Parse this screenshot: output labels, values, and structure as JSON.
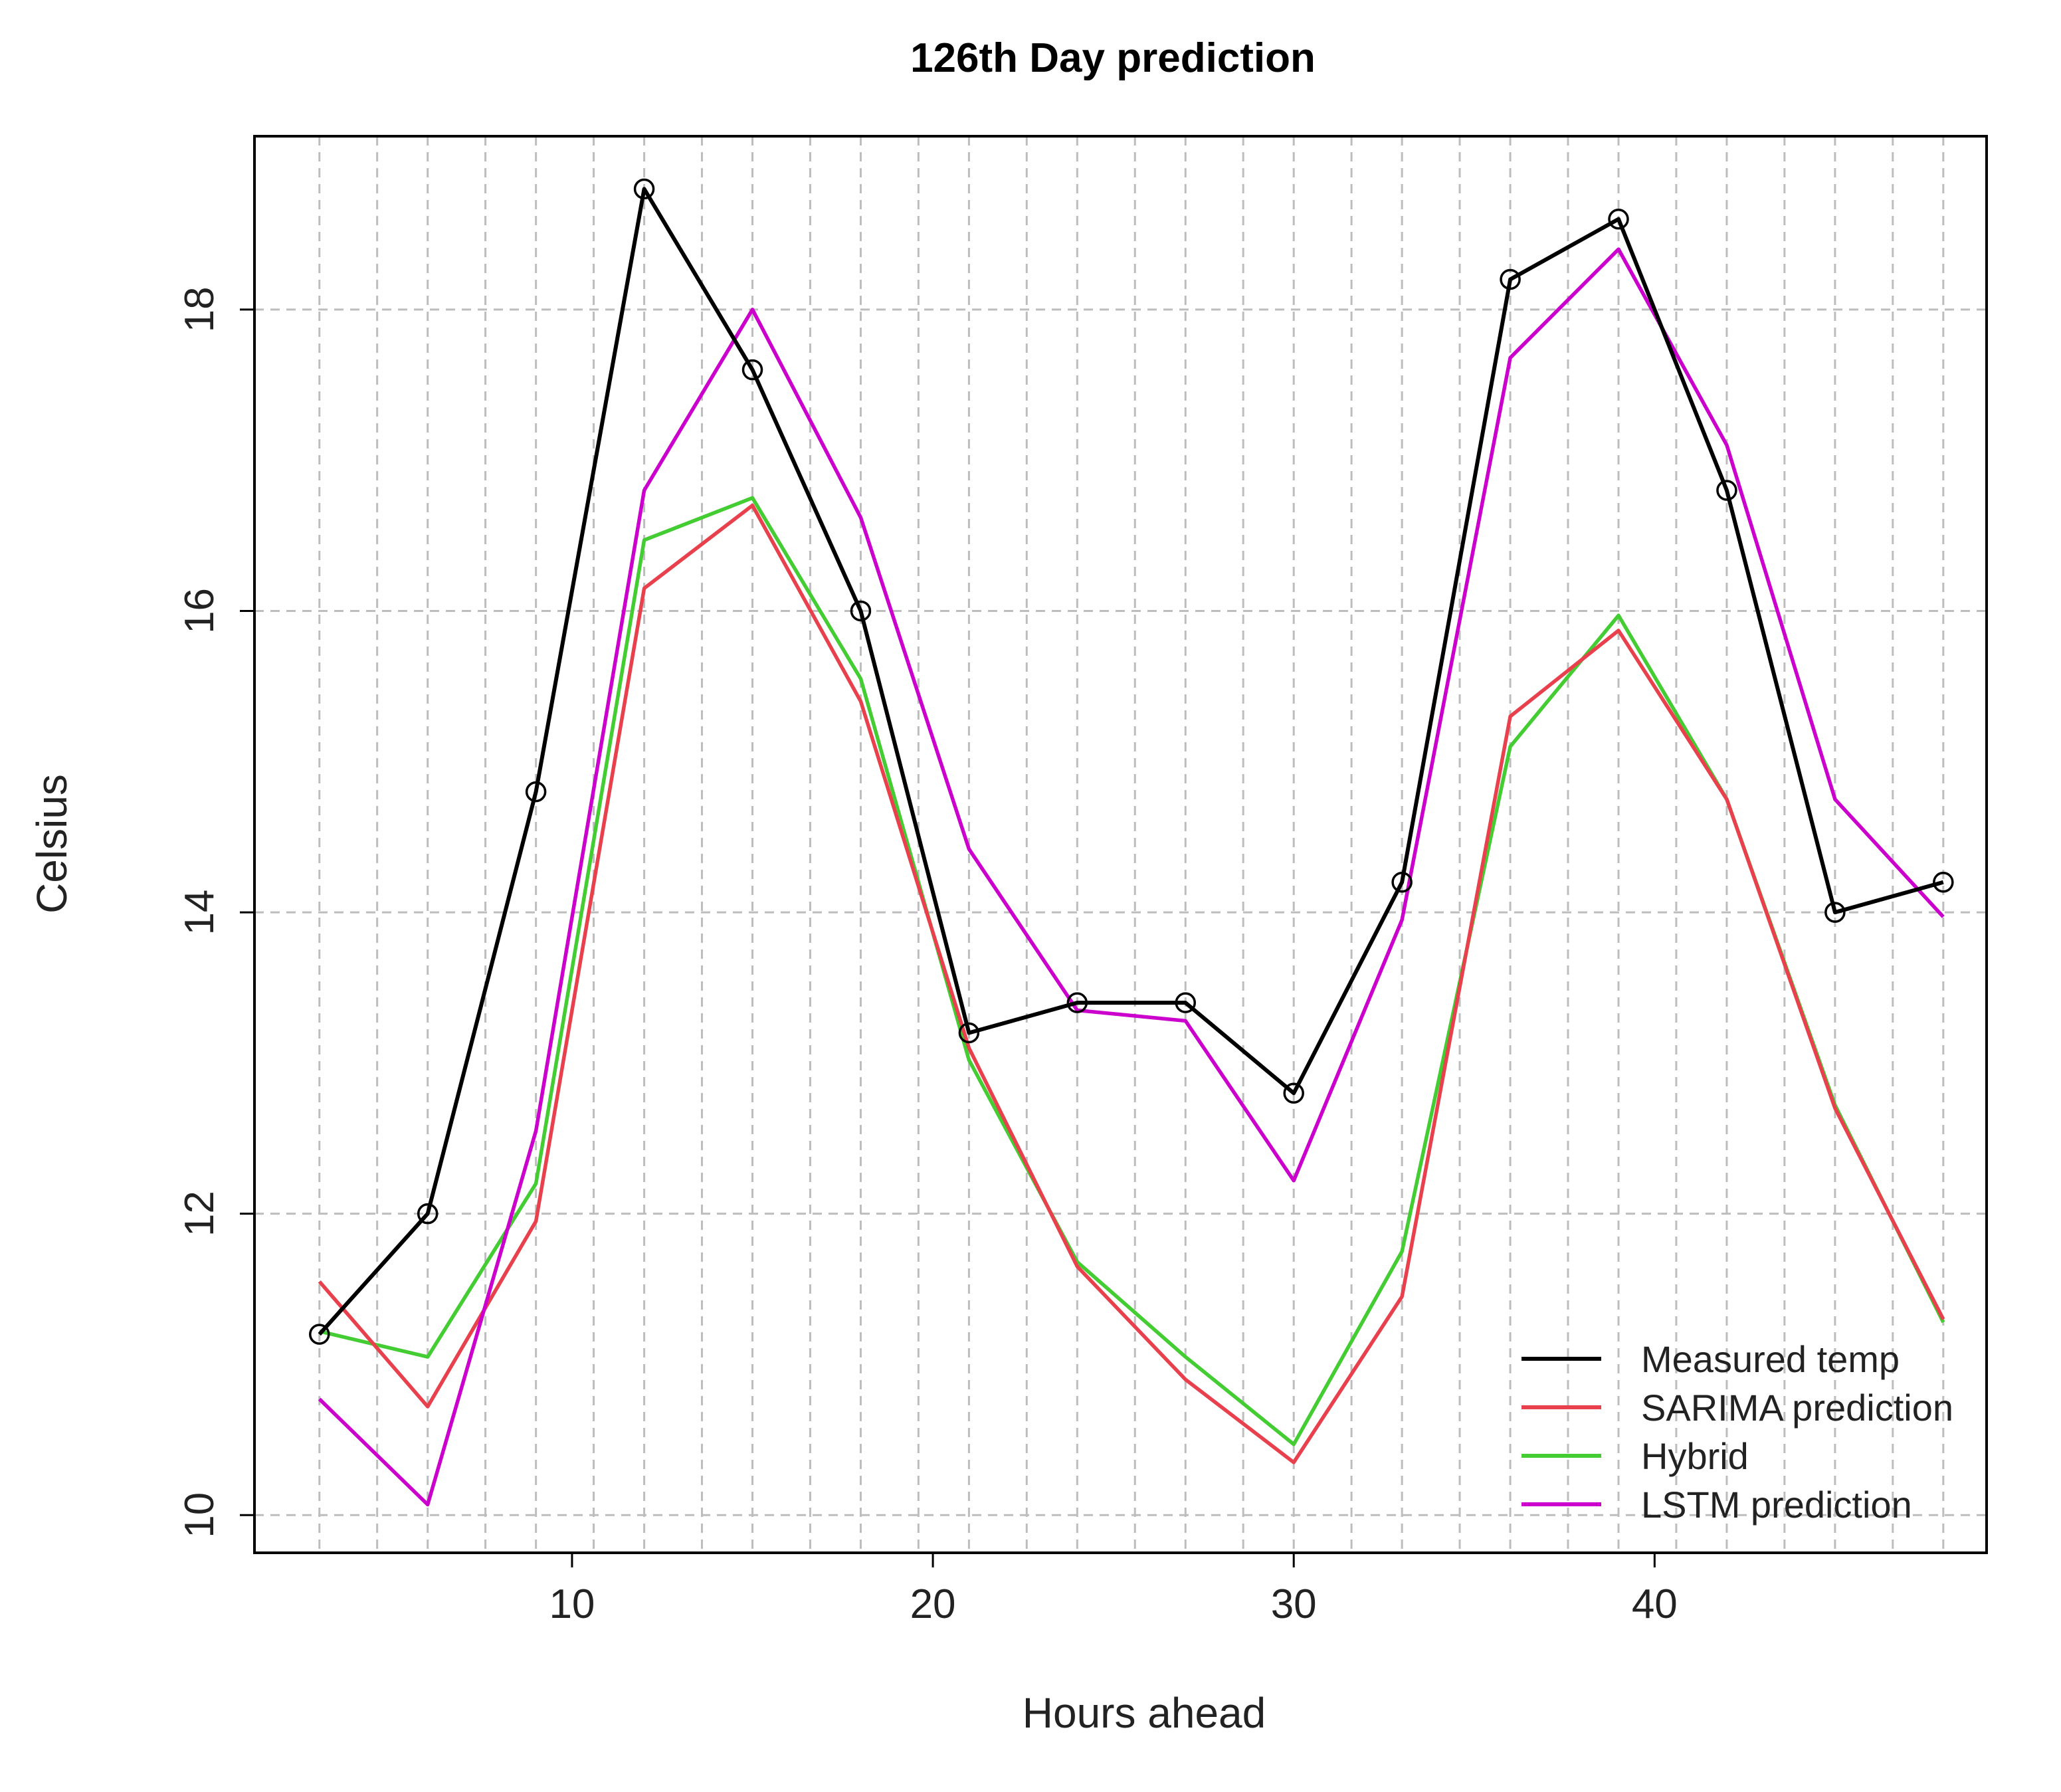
{
  "chart_data": {
    "type": "line",
    "title": "126th Day prediction",
    "xlabel": "Hours ahead",
    "ylabel": "Celsius",
    "xlim": [
      1.2,
      49.2
    ],
    "ylim": [
      9.75,
      19.15
    ],
    "x_ticks": [
      10,
      20,
      30,
      40
    ],
    "y_ticks": [
      10,
      12,
      14,
      16,
      18
    ],
    "x_gridlines": [
      3,
      4.6,
      6,
      7.6,
      9,
      10.6,
      12,
      13.6,
      15,
      16.6,
      18,
      19.6,
      21,
      22.6,
      24,
      25.6,
      27,
      28.6,
      30,
      31.6,
      33,
      34.6,
      36,
      37.6,
      39,
      40.6,
      42,
      43.6,
      45,
      46.6,
      48
    ],
    "grid": true,
    "legend_position": "bottom-right",
    "x": [
      3,
      6,
      9,
      12,
      15,
      18,
      21,
      24,
      27,
      30,
      33,
      36,
      39,
      42,
      45,
      48
    ],
    "series": [
      {
        "name": "Measured temp",
        "color": "#000000",
        "markers": true,
        "values": [
          11.2,
          12.0,
          14.8,
          18.8,
          17.6,
          16.0,
          13.2,
          13.4,
          13.4,
          12.8,
          14.2,
          18.2,
          18.6,
          16.8,
          14.0,
          14.2
        ]
      },
      {
        "name": "SARIMA prediction",
        "color": "#e8404c",
        "markers": false,
        "values": [
          11.55,
          10.72,
          11.95,
          16.15,
          16.7,
          15.4,
          13.1,
          11.65,
          10.9,
          10.35,
          11.45,
          15.3,
          15.87,
          14.75,
          12.7,
          11.3
        ]
      },
      {
        "name": "Hybrid",
        "color": "#44cc33",
        "markers": false,
        "values": [
          11.22,
          11.05,
          12.2,
          16.47,
          16.75,
          15.55,
          13.02,
          11.68,
          11.05,
          10.47,
          11.75,
          15.1,
          15.97,
          14.75,
          12.72,
          11.28
        ]
      },
      {
        "name": "LSTM prediction",
        "color": "#cc00cc",
        "markers": false,
        "values": [
          10.77,
          10.07,
          12.55,
          16.8,
          18.0,
          16.62,
          14.42,
          13.35,
          13.28,
          12.22,
          13.95,
          17.68,
          18.4,
          17.1,
          14.75,
          13.97
        ]
      }
    ]
  }
}
